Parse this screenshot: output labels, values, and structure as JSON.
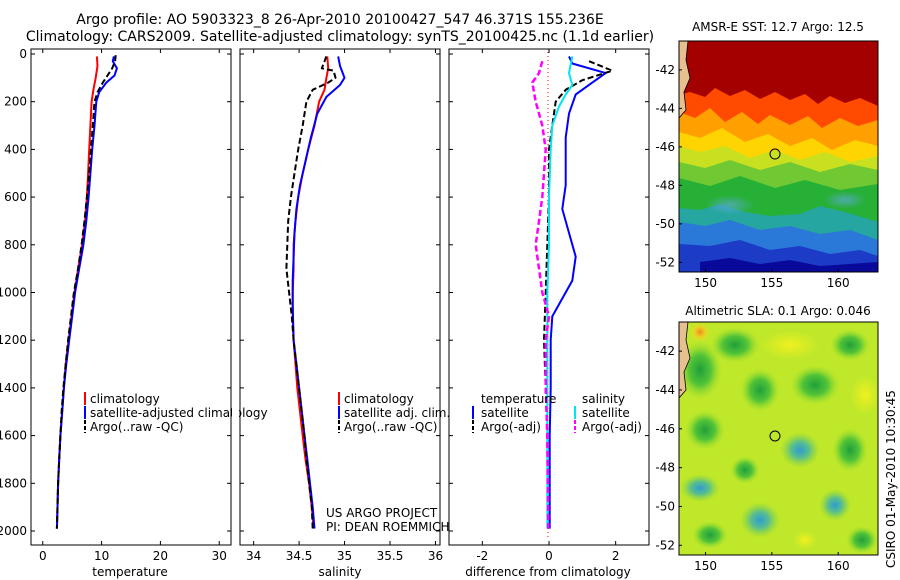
{
  "title_line1": "Argo profile: AO 5903323_8 26-Apr-2010 20100427_547 46.371S 155.236E",
  "title_line2": "Climatology: CARS2009. Satellite-adjusted climatology: synTS_20100425.nc (1.1d earlier)",
  "credit": "CSIRO 01-May-2010 10:30:45",
  "project": [
    "US ARGO PROJECT",
    "PI: DEAN ROEMMICH"
  ],
  "y_ticks": [
    0,
    200,
    400,
    600,
    800,
    1000,
    1200,
    1400,
    1600,
    1800,
    2000
  ],
  "colors": {
    "climatology": "#ff0000",
    "satellite": "#0000ff",
    "argo": "#000000",
    "sat_salinity": "#00e5ee",
    "argo_salinity": "#ff00ff"
  },
  "chart_data": [
    {
      "type": "line",
      "xlabel": "temperature",
      "ylabel": "",
      "xlim": [
        -2,
        32
      ],
      "ylim": [
        2050,
        0
      ],
      "x_ticks": [
        0,
        10,
        20,
        30
      ],
      "legend": [
        "climatology",
        "satellite-adjusted climatology",
        "Argo(..raw -QC)"
      ],
      "series": [
        {
          "name": "climatology",
          "points": [
            [
              9.2,
              10
            ],
            [
              9.3,
              50
            ],
            [
              9.0,
              100
            ],
            [
              8.6,
              150
            ],
            [
              8.3,
              200
            ],
            [
              8.1,
              300
            ],
            [
              7.9,
              400
            ],
            [
              7.7,
              500
            ],
            [
              7.5,
              600
            ],
            [
              7.2,
              700
            ],
            [
              6.7,
              800
            ],
            [
              6.0,
              900
            ],
            [
              5.4,
              1000
            ],
            [
              4.9,
              1100
            ],
            [
              4.4,
              1200
            ],
            [
              3.9,
              1300
            ],
            [
              3.6,
              1400
            ],
            [
              3.3,
              1500
            ],
            [
              3.0,
              1600
            ],
            [
              2.8,
              1700
            ],
            [
              2.6,
              1800
            ],
            [
              2.5,
              1900
            ],
            [
              2.4,
              1990
            ]
          ]
        },
        {
          "name": "satellite-adjusted climatology",
          "points": [
            [
              12.1,
              10
            ],
            [
              11.9,
              30
            ],
            [
              12.6,
              60
            ],
            [
              12.2,
              90
            ],
            [
              10.8,
              120
            ],
            [
              9.6,
              160
            ],
            [
              9.1,
              200
            ],
            [
              8.8,
              300
            ],
            [
              8.4,
              400
            ],
            [
              8.1,
              500
            ],
            [
              7.8,
              600
            ],
            [
              7.4,
              700
            ],
            [
              6.9,
              800
            ],
            [
              6.2,
              900
            ],
            [
              5.5,
              1000
            ],
            [
              5.0,
              1100
            ],
            [
              4.5,
              1200
            ],
            [
              4.0,
              1300
            ],
            [
              3.6,
              1400
            ],
            [
              3.3,
              1500
            ],
            [
              3.0,
              1600
            ],
            [
              2.8,
              1700
            ],
            [
              2.6,
              1800
            ],
            [
              2.5,
              1900
            ],
            [
              2.4,
              1990
            ]
          ]
        },
        {
          "name": "Argo(..raw -QC)",
          "points": [
            [
              12.4,
              5
            ],
            [
              12.3,
              30
            ],
            [
              11.8,
              60
            ],
            [
              11.0,
              90
            ],
            [
              10.2,
              120
            ],
            [
              9.3,
              160
            ],
            [
              8.8,
              200
            ],
            [
              8.5,
              300
            ],
            [
              8.2,
              400
            ],
            [
              7.9,
              500
            ],
            [
              7.5,
              600
            ],
            [
              7.1,
              700
            ],
            [
              6.6,
              800
            ],
            [
              6.0,
              900
            ],
            [
              5.3,
              1000
            ],
            [
              4.8,
              1100
            ],
            [
              4.3,
              1200
            ],
            [
              3.9,
              1300
            ],
            [
              3.5,
              1400
            ],
            [
              3.2,
              1500
            ],
            [
              3.0,
              1600
            ],
            [
              2.8,
              1700
            ],
            [
              2.6,
              1800
            ],
            [
              2.5,
              1900
            ],
            [
              2.4,
              1990
            ]
          ]
        }
      ]
    },
    {
      "type": "line",
      "xlabel": "salinity",
      "ylabel": "",
      "xlim": [
        33.85,
        36.05
      ],
      "ylim": [
        2050,
        0
      ],
      "x_ticks": [
        34,
        34.5,
        35,
        35.5,
        36
      ],
      "legend": [
        "climatology",
        "satellite adj. clim.",
        "Argo(..raw -QC)"
      ],
      "series": [
        {
          "name": "climatology",
          "points": [
            [
              34.81,
              10
            ],
            [
              34.82,
              60
            ],
            [
              34.8,
              100
            ],
            [
              34.78,
              150
            ],
            [
              34.72,
              200
            ],
            [
              34.67,
              300
            ],
            [
              34.6,
              400
            ],
            [
              34.54,
              500
            ],
            [
              34.49,
              600
            ],
            [
              34.46,
              700
            ],
            [
              34.44,
              800
            ],
            [
              34.44,
              900
            ],
            [
              34.43,
              1000
            ],
            [
              34.43,
              1100
            ],
            [
              34.44,
              1200
            ],
            [
              34.46,
              1300
            ],
            [
              34.48,
              1400
            ],
            [
              34.51,
              1500
            ],
            [
              34.54,
              1600
            ],
            [
              34.57,
              1700
            ],
            [
              34.61,
              1800
            ],
            [
              34.64,
              1900
            ],
            [
              34.66,
              1990
            ]
          ]
        },
        {
          "name": "satellite adj. clim.",
          "points": [
            [
              34.93,
              10
            ],
            [
              34.95,
              50
            ],
            [
              35.0,
              100
            ],
            [
              34.95,
              130
            ],
            [
              34.8,
              180
            ],
            [
              34.7,
              250
            ],
            [
              34.63,
              350
            ],
            [
              34.57,
              450
            ],
            [
              34.51,
              550
            ],
            [
              34.47,
              650
            ],
            [
              34.45,
              750
            ],
            [
              34.44,
              850
            ],
            [
              34.43,
              950
            ],
            [
              34.43,
              1050
            ],
            [
              34.44,
              1200
            ],
            [
              34.47,
              1300
            ],
            [
              34.5,
              1400
            ],
            [
              34.53,
              1500
            ],
            [
              34.56,
              1600
            ],
            [
              34.59,
              1700
            ],
            [
              34.62,
              1800
            ],
            [
              34.65,
              1900
            ],
            [
              34.67,
              1990
            ]
          ]
        },
        {
          "name": "Argo(..raw -QC)",
          "points": [
            [
              34.8,
              10
            ],
            [
              34.75,
              60
            ],
            [
              34.88,
              70
            ],
            [
              34.9,
              100
            ],
            [
              34.82,
              120
            ],
            [
              34.65,
              150
            ],
            [
              34.58,
              200
            ],
            [
              34.54,
              300
            ],
            [
              34.49,
              400
            ],
            [
              34.45,
              500
            ],
            [
              34.41,
              600
            ],
            [
              34.38,
              700
            ],
            [
              34.37,
              800
            ],
            [
              34.36,
              900
            ],
            [
              34.39,
              1000
            ],
            [
              34.42,
              1100
            ],
            [
              34.44,
              1200
            ],
            [
              34.47,
              1300
            ],
            [
              34.5,
              1400
            ],
            [
              34.53,
              1500
            ],
            [
              34.56,
              1600
            ],
            [
              34.58,
              1700
            ],
            [
              34.61,
              1800
            ],
            [
              34.64,
              1900
            ],
            [
              34.65,
              1990
            ]
          ]
        }
      ]
    },
    {
      "type": "line",
      "xlabel": "difference from climatology",
      "ylabel": "",
      "xlim": [
        -3,
        3
      ],
      "ylim": [
        2050,
        0
      ],
      "x_ticks": [
        -2,
        0,
        2
      ],
      "legend": [
        "temperature",
        "satellite",
        "Argo(-adj)",
        "salinity",
        "satellite",
        "Argo(-adj)"
      ],
      "series": [
        {
          "name": "temperature satellite",
          "points": [
            [
              0.6,
              10
            ],
            [
              0.7,
              40
            ],
            [
              1.7,
              80
            ],
            [
              1.3,
              120
            ],
            [
              0.8,
              170
            ],
            [
              0.6,
              250
            ],
            [
              0.5,
              350
            ],
            [
              0.5,
              450
            ],
            [
              0.5,
              550
            ],
            [
              0.4,
              650
            ],
            [
              0.6,
              750
            ],
            [
              0.8,
              850
            ],
            [
              0.7,
              950
            ],
            [
              0.3,
              1050
            ],
            [
              0.1,
              1100
            ],
            [
              0.05,
              1200
            ],
            [
              0.05,
              1400
            ],
            [
              0.02,
              1600
            ],
            [
              0.02,
              1990
            ]
          ]
        },
        {
          "name": "temperature Argo(-adj)",
          "points": [
            [
              1.2,
              30
            ],
            [
              1.9,
              70
            ],
            [
              1.0,
              110
            ],
            [
              0.5,
              150
            ],
            [
              0.2,
              200
            ],
            [
              0.1,
              300
            ],
            [
              0.0,
              400
            ],
            [
              0.0,
              600
            ],
            [
              -0.05,
              800
            ],
            [
              -0.1,
              1000
            ],
            [
              -0.15,
              1200
            ],
            [
              -0.1,
              1400
            ],
            [
              -0.05,
              1600
            ],
            [
              -0.02,
              1990
            ]
          ]
        },
        {
          "name": "salinity satellite",
          "points": [
            [
              0.7,
              10
            ],
            [
              0.6,
              80
            ],
            [
              0.7,
              130
            ],
            [
              0.5,
              170
            ],
            [
              0.3,
              220
            ],
            [
              0.1,
              300
            ],
            [
              0.05,
              400
            ],
            [
              0.0,
              600
            ],
            [
              0.0,
              800
            ],
            [
              -0.05,
              1000
            ],
            [
              -0.05,
              1200
            ],
            [
              -0.05,
              1500
            ],
            [
              -0.05,
              1800
            ],
            [
              -0.05,
              1990
            ]
          ]
        },
        {
          "name": "salinity Argo(-adj)",
          "points": [
            [
              -0.2,
              30
            ],
            [
              -0.3,
              80
            ],
            [
              -0.5,
              120
            ],
            [
              -0.4,
              200
            ],
            [
              -0.2,
              300
            ],
            [
              -0.1,
              400
            ],
            [
              -0.2,
              600
            ],
            [
              -0.4,
              800
            ],
            [
              -0.3,
              900
            ],
            [
              -0.2,
              1000
            ],
            [
              0.0,
              1100
            ],
            [
              -0.1,
              1200
            ],
            [
              -0.1,
              1400
            ],
            [
              -0.05,
              1600
            ],
            [
              -0.02,
              1990
            ]
          ]
        }
      ]
    },
    {
      "type": "heatmap",
      "title": "AMSR-E SST: 12.7 Argo: 12.5",
      "xlim": [
        148,
        163
      ],
      "ylim": [
        -52.5,
        -40.5
      ],
      "x_ticks": [
        150,
        155,
        160
      ],
      "y_ticks": [
        -42,
        -44,
        -46,
        -48,
        -50,
        -52
      ],
      "marker": {
        "lon": 155.236,
        "lat": -46.371
      }
    },
    {
      "type": "heatmap",
      "title": "Altimetric SLA: 0.1 Argo: 0.046",
      "xlim": [
        148,
        163
      ],
      "ylim": [
        -52.5,
        -40.5
      ],
      "x_ticks": [
        150,
        155,
        160
      ],
      "y_ticks": [
        -42,
        -44,
        -46,
        -48,
        -50,
        -52
      ],
      "marker": {
        "lon": 155.236,
        "lat": -46.371
      }
    }
  ]
}
